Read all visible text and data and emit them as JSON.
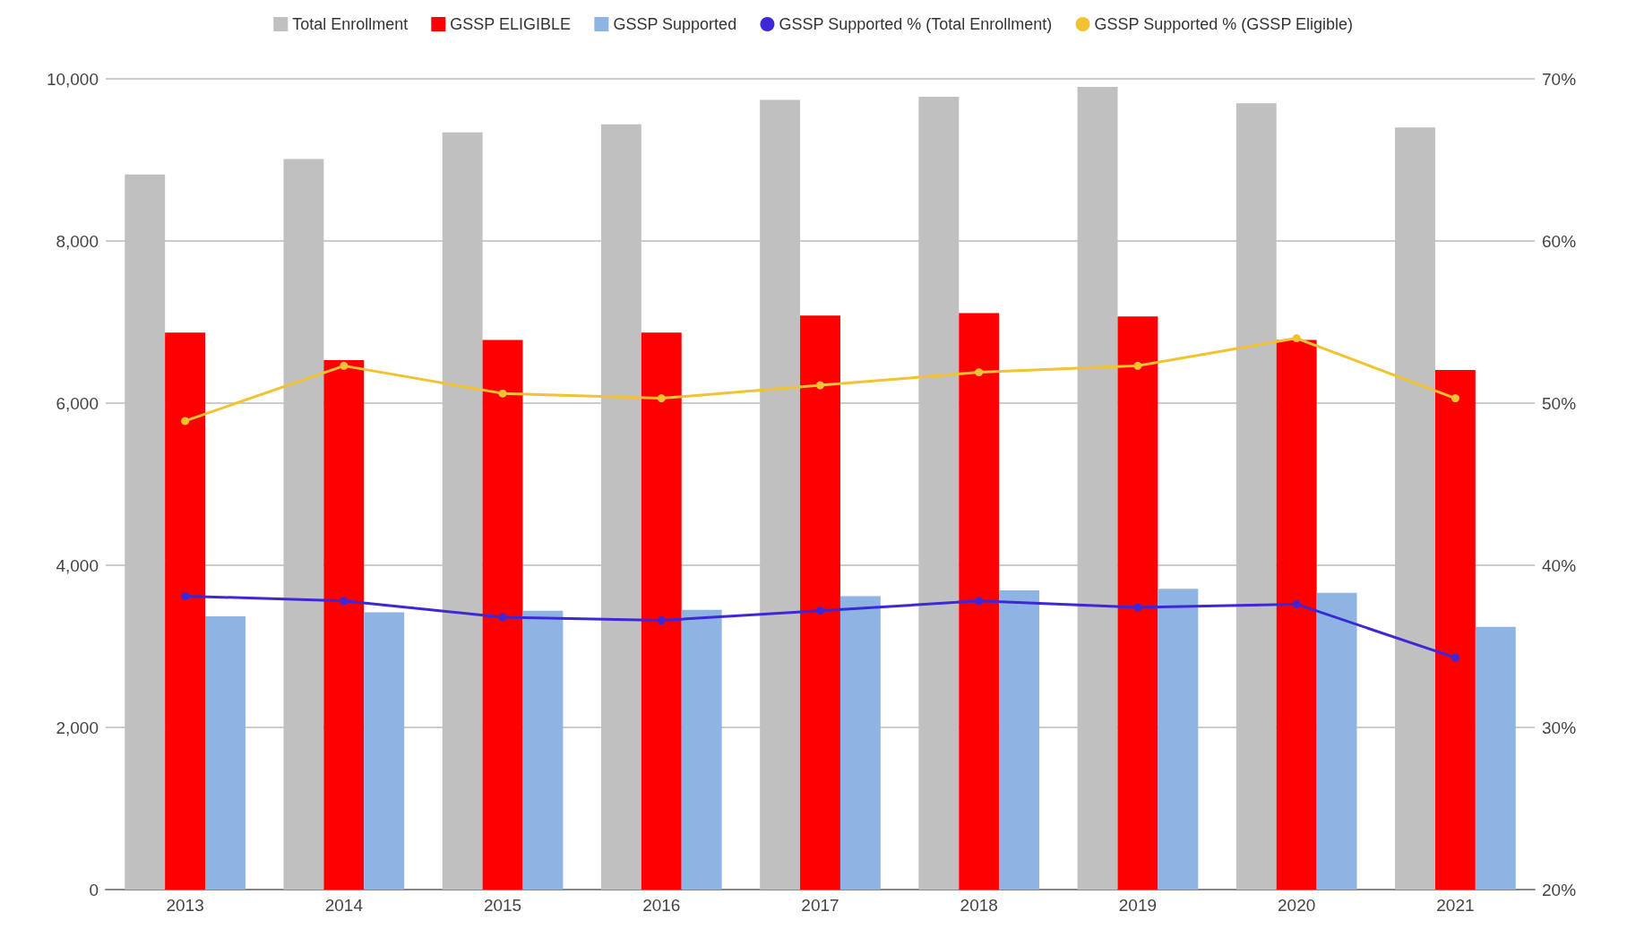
{
  "chart_data": {
    "type": "bar",
    "categories": [
      "2013",
      "2014",
      "2015",
      "2016",
      "2017",
      "2018",
      "2019",
      "2020",
      "2021"
    ],
    "series": [
      {
        "name": "Total Enrollment",
        "color": "#c0c0c0",
        "values": [
          8820,
          9010,
          9340,
          9440,
          9740,
          9780,
          9900,
          9700,
          9400
        ]
      },
      {
        "name": "GSSP ELIGIBLE",
        "color": "#ff0000",
        "values": [
          6870,
          6530,
          6780,
          6870,
          7080,
          7110,
          7070,
          6780,
          6410
        ]
      },
      {
        "name": "GSSP Supported",
        "color": "#8eb4e3",
        "values": [
          3370,
          3420,
          3440,
          3450,
          3620,
          3690,
          3710,
          3660,
          3240
        ]
      },
      {
        "name": "GSSP Supported % (Total Enrollment)",
        "type": "line",
        "axis": "y2",
        "color": "#3c28d8",
        "values": [
          38.1,
          37.8,
          36.8,
          36.6,
          37.2,
          37.8,
          37.4,
          37.6,
          34.3
        ]
      },
      {
        "name": "GSSP Supported % (GSSP Eligible)",
        "type": "line",
        "axis": "y2",
        "color": "#f1c232",
        "values": [
          48.9,
          52.3,
          50.6,
          50.3,
          51.1,
          51.9,
          52.3,
          54.0,
          50.3
        ]
      }
    ],
    "ylim": [
      0,
      10000
    ],
    "yticks": [
      {
        "value": 0,
        "label": "0"
      },
      {
        "value": 2000,
        "label": "2,000"
      },
      {
        "value": 4000,
        "label": "4,000"
      },
      {
        "value": 6000,
        "label": "6,000"
      },
      {
        "value": 8000,
        "label": "8,000"
      },
      {
        "value": 10000,
        "label": "10,000"
      }
    ],
    "y2lim": [
      20,
      70
    ],
    "y2ticks": [
      {
        "value": 20,
        "label": "20%"
      },
      {
        "value": 30,
        "label": "30%"
      },
      {
        "value": 40,
        "label": "40%"
      },
      {
        "value": 50,
        "label": "50%"
      },
      {
        "value": 60,
        "label": "60%"
      },
      {
        "value": 70,
        "label": "70%"
      }
    ],
    "grid": "y",
    "legend": "top",
    "marker": "circle"
  }
}
